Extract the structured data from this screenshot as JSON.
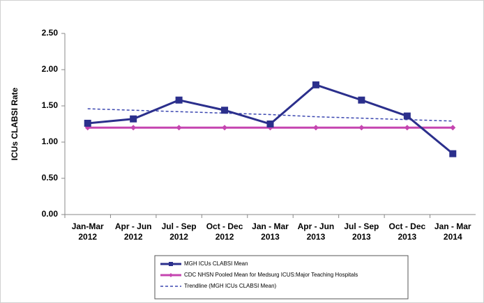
{
  "chart_data": {
    "type": "line",
    "y_label": "ICUs CLABSI Rate",
    "categories": [
      [
        "Jan-Mar",
        "2012"
      ],
      [
        "Apr - Jun",
        "2012"
      ],
      [
        "Jul - Sep",
        "2012"
      ],
      [
        "Oct - Dec",
        "2012"
      ],
      [
        "Jan - Mar",
        "2013"
      ],
      [
        "Apr - Jun",
        "2013"
      ],
      [
        "Jul - Sep",
        "2013"
      ],
      [
        "Oct - Dec",
        "2013"
      ],
      [
        "Jan - Mar",
        "2014"
      ]
    ],
    "series": [
      {
        "name": "MGH ICUs CLABSI Mean",
        "color": "#2b2f8c",
        "style": "solid",
        "marker": "square",
        "values": [
          1.26,
          1.32,
          1.58,
          1.44,
          1.25,
          1.79,
          1.58,
          1.36,
          0.84
        ]
      },
      {
        "name": "CDC NHSN Pooled Mean for Medsurg ICUS:Major Teaching Hospitals",
        "color": "#c545b0",
        "style": "solid",
        "marker": "diamond",
        "values": [
          1.2,
          1.2,
          1.2,
          1.2,
          1.2,
          1.2,
          1.2,
          1.2,
          1.2
        ]
      },
      {
        "name": "Trendline (MGH ICUs CLABSI Mean)",
        "color": "#3a46b0",
        "style": "dashed",
        "marker": "none",
        "values": [
          1.46,
          1.44,
          1.42,
          1.4,
          1.38,
          1.35,
          1.33,
          1.31,
          1.29
        ]
      }
    ],
    "ylim": [
      0,
      2.5
    ],
    "yticks": [
      {
        "value": 0,
        "label": "0.00"
      },
      {
        "value": 0.5,
        "label": "0.50"
      },
      {
        "value": 1,
        "label": "1.00"
      },
      {
        "value": 1.5,
        "label": "1.50"
      },
      {
        "value": 2,
        "label": "2.00"
      },
      {
        "value": 2.5,
        "label": "2.50"
      }
    ],
    "grid": false,
    "legend": "bottom"
  }
}
